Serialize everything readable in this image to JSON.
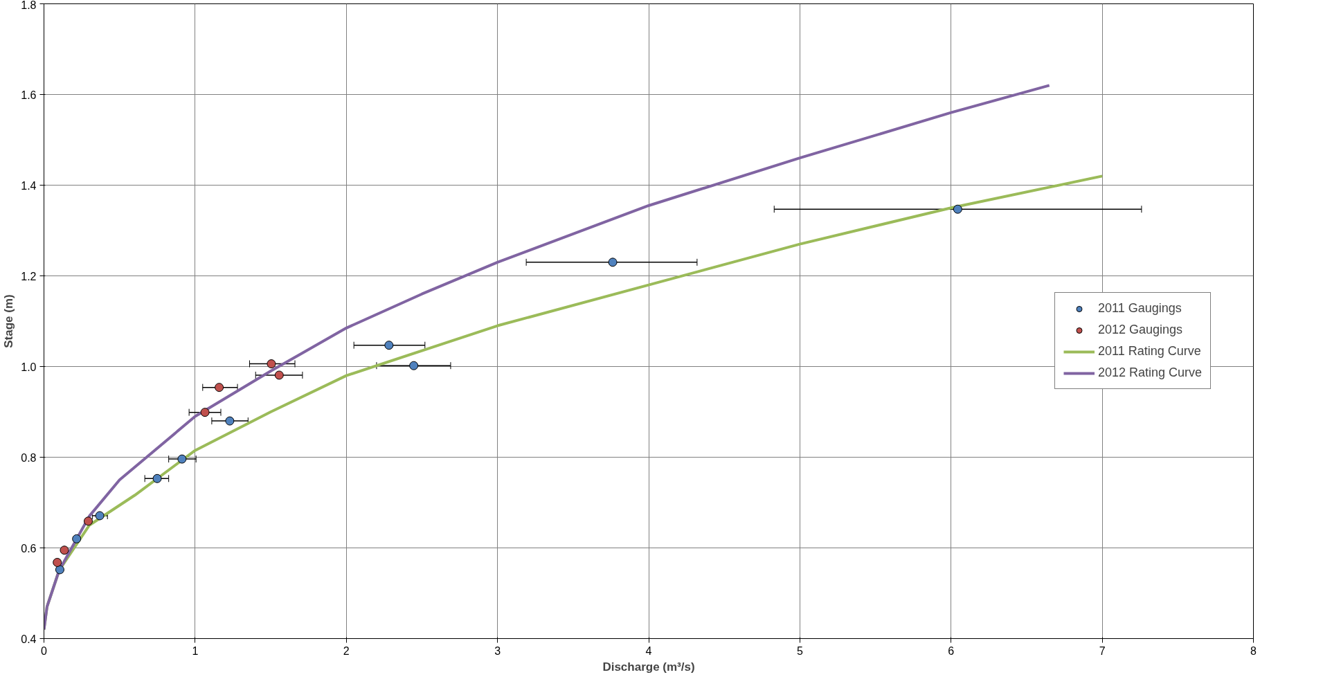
{
  "chart_data": {
    "type": "scatter",
    "xlabel": "Discharge (m³/s)",
    "ylabel": "Stage (m)",
    "xlim": [
      0,
      8
    ],
    "ylim": [
      0.4,
      1.8
    ],
    "xticks": [
      0,
      1,
      2,
      3,
      4,
      5,
      6,
      7,
      8
    ],
    "yticks": [
      {
        "value": 0.4,
        "label": "0.4"
      },
      {
        "value": 0.6,
        "label": "0.6"
      },
      {
        "value": 0.8,
        "label": "0.8"
      },
      {
        "value": 1.0,
        "label": "1.0"
      },
      {
        "value": 1.2,
        "label": "1.2"
      },
      {
        "value": 1.4,
        "label": "1.4"
      },
      {
        "value": 1.6,
        "label": "1.6"
      },
      {
        "value": 1.8,
        "label": "1.8"
      }
    ],
    "grid": true,
    "legend": "right",
    "series": [
      {
        "name": "2011 Gaugings",
        "marker": "circle",
        "color": "#4f81bd",
        "x": [
          0.105,
          0.216,
          0.369,
          0.749,
          0.913,
          1.229,
          2.282,
          2.446,
          3.762,
          6.044
        ],
        "values": [
          0.552,
          0.62,
          0.671,
          0.753,
          0.796,
          0.88,
          1.047,
          1.002,
          1.23,
          1.347
        ],
        "xerrors": [
          null,
          null,
          [
            0.32,
            0.42
          ],
          [
            0.667,
            0.825
          ],
          [
            0.825,
            1.006
          ],
          [
            1.11,
            1.35
          ],
          [
            2.05,
            2.52
          ],
          [
            2.2,
            2.69
          ],
          [
            3.19,
            4.32
          ],
          [
            4.83,
            7.26
          ]
        ]
      },
      {
        "name": "2012 Gaugings",
        "marker": "circle",
        "color": "#c0504d",
        "x": [
          0.088,
          0.135,
          0.293,
          1.065,
          1.159,
          1.504,
          1.556
        ],
        "values": [
          0.568,
          0.595,
          0.659,
          0.899,
          0.954,
          1.006,
          0.981
        ],
        "xerrors": [
          null,
          null,
          null,
          [
            0.96,
            1.17
          ],
          [
            1.05,
            1.28
          ],
          [
            1.36,
            1.66
          ],
          [
            1.4,
            1.71
          ]
        ]
      },
      {
        "name": "2011 Rating Curve",
        "type": "line",
        "color": "#9bbb59",
        "x": [
          0,
          0.02,
          0.05,
          0.1,
          0.3,
          0.6,
          1,
          1.5,
          2,
          2.5,
          3,
          4,
          5,
          6,
          7
        ],
        "values": [
          0.42,
          0.47,
          0.5,
          0.55,
          0.65,
          0.716,
          0.815,
          0.9,
          0.98,
          1.035,
          1.09,
          1.18,
          1.27,
          1.35,
          1.42
        ]
      },
      {
        "name": "2012 Rating Curve",
        "type": "line",
        "color": "#8064a2",
        "x": [
          0,
          0.02,
          0.05,
          0.1,
          0.3,
          0.5,
          1,
          1.5,
          2,
          2.5,
          3,
          4,
          5,
          6,
          6.65
        ],
        "values": [
          0.42,
          0.47,
          0.5,
          0.55,
          0.67,
          0.75,
          0.89,
          0.99,
          1.085,
          1.16,
          1.23,
          1.355,
          1.46,
          1.56,
          1.62
        ]
      }
    ]
  }
}
